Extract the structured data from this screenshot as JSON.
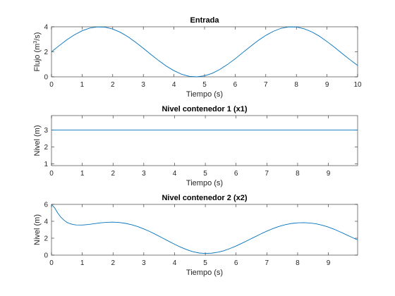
{
  "figure": {
    "background": "#ffffff"
  },
  "chart_data": [
    {
      "type": "line",
      "title": "Entrada",
      "xlabel": "Tiempo (s)",
      "ylabel": {
        "prefix": "Flujo (m",
        "sup": "3",
        "suffix": "/s)"
      },
      "xlim": [
        0,
        10
      ],
      "ylim": [
        0,
        4
      ],
      "xticks": [
        0,
        1,
        2,
        3,
        4,
        5,
        6,
        7,
        8,
        9,
        10
      ],
      "xtick_labels": [
        "0",
        "1",
        "2",
        "3",
        "4",
        "5",
        "6",
        "7",
        "8",
        "9",
        "10"
      ],
      "yticks": [
        0,
        2,
        4
      ],
      "ytick_labels": [
        "0",
        "2",
        "4"
      ],
      "grid": false,
      "series": [
        {
          "color": "#0072bd",
          "x": [
            0,
            0.25,
            0.5,
            0.75,
            1,
            1.25,
            1.5,
            1.75,
            2,
            2.25,
            2.5,
            2.75,
            3,
            3.25,
            3.5,
            3.75,
            4,
            4.25,
            4.5,
            4.75,
            5,
            5.25,
            5.5,
            5.75,
            6,
            6.25,
            6.5,
            6.75,
            7,
            7.25,
            7.5,
            7.75,
            8,
            8.25,
            8.5,
            8.75,
            9,
            9.25,
            9.5,
            9.75,
            10
          ],
          "y": [
            2.0,
            2.49,
            2.96,
            3.36,
            3.68,
            3.9,
            3.99,
            3.97,
            3.82,
            3.56,
            3.2,
            2.76,
            2.28,
            1.78,
            1.3,
            0.86,
            0.49,
            0.21,
            0.04,
            0.0,
            0.08,
            0.28,
            0.59,
            0.99,
            1.44,
            1.94,
            2.43,
            2.9,
            3.31,
            3.64,
            3.88,
            3.99,
            3.98,
            3.84,
            3.6,
            3.25,
            2.82,
            2.35,
            1.85,
            1.37,
            0.91
          ]
        }
      ]
    },
    {
      "type": "line",
      "title": "Nivel contenedor 1 (x1)",
      "xlabel": "Tiempo (s)",
      "ylabel": "Nivel (m)",
      "xlim": [
        0,
        9.95
      ],
      "ylim": [
        0.9,
        3.85
      ],
      "xticks": [
        0,
        1,
        2,
        3,
        4,
        5,
        6,
        7,
        8,
        9
      ],
      "xtick_labels": [
        "0",
        "1",
        "2",
        "3",
        "4",
        "5",
        "6",
        "7",
        "8",
        "9"
      ],
      "yticks": [
        1,
        2,
        3
      ],
      "ytick_labels": [
        "1",
        "2",
        "3"
      ],
      "grid": false,
      "series": [
        {
          "color": "#0072bd",
          "x": [
            0,
            9.95
          ],
          "y": [
            3,
            3
          ]
        }
      ]
    },
    {
      "type": "line",
      "title": "Nivel contenedor 2 (x2)",
      "xlabel": "Tiempo (s)",
      "ylabel": "Nivel (m)",
      "xlim": [
        0,
        9.95
      ],
      "ylim": [
        0,
        6
      ],
      "xticks": [
        0,
        1,
        2,
        3,
        4,
        5,
        6,
        7,
        8,
        9
      ],
      "xtick_labels": [
        "0",
        "1",
        "2",
        "3",
        "4",
        "5",
        "6",
        "7",
        "8",
        "9"
      ],
      "yticks": [
        0,
        2,
        4,
        6
      ],
      "ytick_labels": [
        "0",
        "2",
        "4",
        "6"
      ],
      "grid": false,
      "series": [
        {
          "color": "#0072bd",
          "x": [
            0,
            0.1,
            0.2,
            0.3,
            0.4,
            0.5,
            0.6,
            0.7,
            0.8,
            1.0,
            1.2,
            1.4,
            1.6,
            1.8,
            2.0,
            2.2,
            2.4,
            2.6,
            2.8,
            3.0,
            3.2,
            3.4,
            3.6,
            3.8,
            4.0,
            4.2,
            4.4,
            4.6,
            4.8,
            5.0,
            5.2,
            5.4,
            5.6,
            5.8,
            6.0,
            6.2,
            6.4,
            6.6,
            6.8,
            7.0,
            7.2,
            7.4,
            7.6,
            7.8,
            8.0,
            8.2,
            8.4,
            8.6,
            8.8,
            9.0,
            9.2,
            9.4,
            9.6,
            9.8,
            9.95
          ],
          "y": [
            6.0,
            5.6,
            5.0,
            4.5,
            4.15,
            3.88,
            3.72,
            3.62,
            3.57,
            3.56,
            3.62,
            3.72,
            3.82,
            3.88,
            3.9,
            3.86,
            3.76,
            3.6,
            3.38,
            3.1,
            2.78,
            2.42,
            2.04,
            1.66,
            1.28,
            0.94,
            0.64,
            0.4,
            0.25,
            0.2,
            0.23,
            0.34,
            0.52,
            0.78,
            1.08,
            1.42,
            1.78,
            2.14,
            2.5,
            2.84,
            3.14,
            3.4,
            3.6,
            3.74,
            3.82,
            3.84,
            3.8,
            3.7,
            3.54,
            3.32,
            3.04,
            2.72,
            2.38,
            2.04,
            1.8
          ]
        }
      ]
    }
  ]
}
